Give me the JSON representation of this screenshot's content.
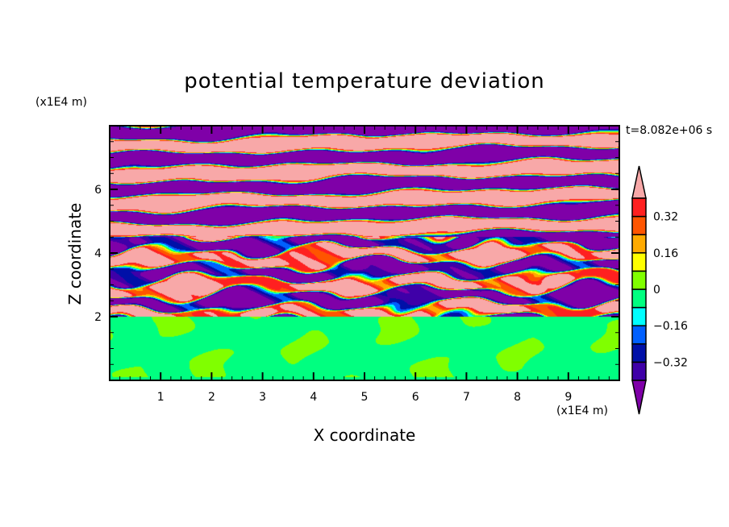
{
  "chart_data": {
    "type": "heatmap",
    "title": "potential temperature deviation",
    "xlabel": "X coordinate",
    "ylabel": "Z coordinate",
    "x_unit": "(x1E4 m)",
    "z_unit": "(x1E4 m)",
    "time_label": "t=8.082e+06 s",
    "xlim": [
      0,
      10
    ],
    "zlim": [
      0,
      8
    ],
    "x_ticks": [
      "1",
      "2",
      "3",
      "4",
      "5",
      "6",
      "7",
      "8",
      "9"
    ],
    "z_ticks": [
      "2",
      "4",
      "6"
    ],
    "colorbar": {
      "levels": [
        -0.4,
        -0.32,
        -0.24,
        -0.16,
        -0.08,
        0,
        0.08,
        0.16,
        0.24,
        0.32,
        0.4
      ],
      "tick_labels": [
        "0.32",
        "0.16",
        "0",
        "−0.16",
        "−0.32"
      ],
      "tick_values": [
        0.32,
        0.16,
        0,
        -0.16,
        -0.32
      ],
      "colors": [
        "#7f00a8",
        "#3f00a8",
        "#0010a8",
        "#0060ff",
        "#00ffff",
        "#00ff80",
        "#80ff00",
        "#ffff00",
        "#ffaa00",
        "#ff5500",
        "#ff2020",
        "#f8a8a8"
      ],
      "extend": "both"
    }
  }
}
